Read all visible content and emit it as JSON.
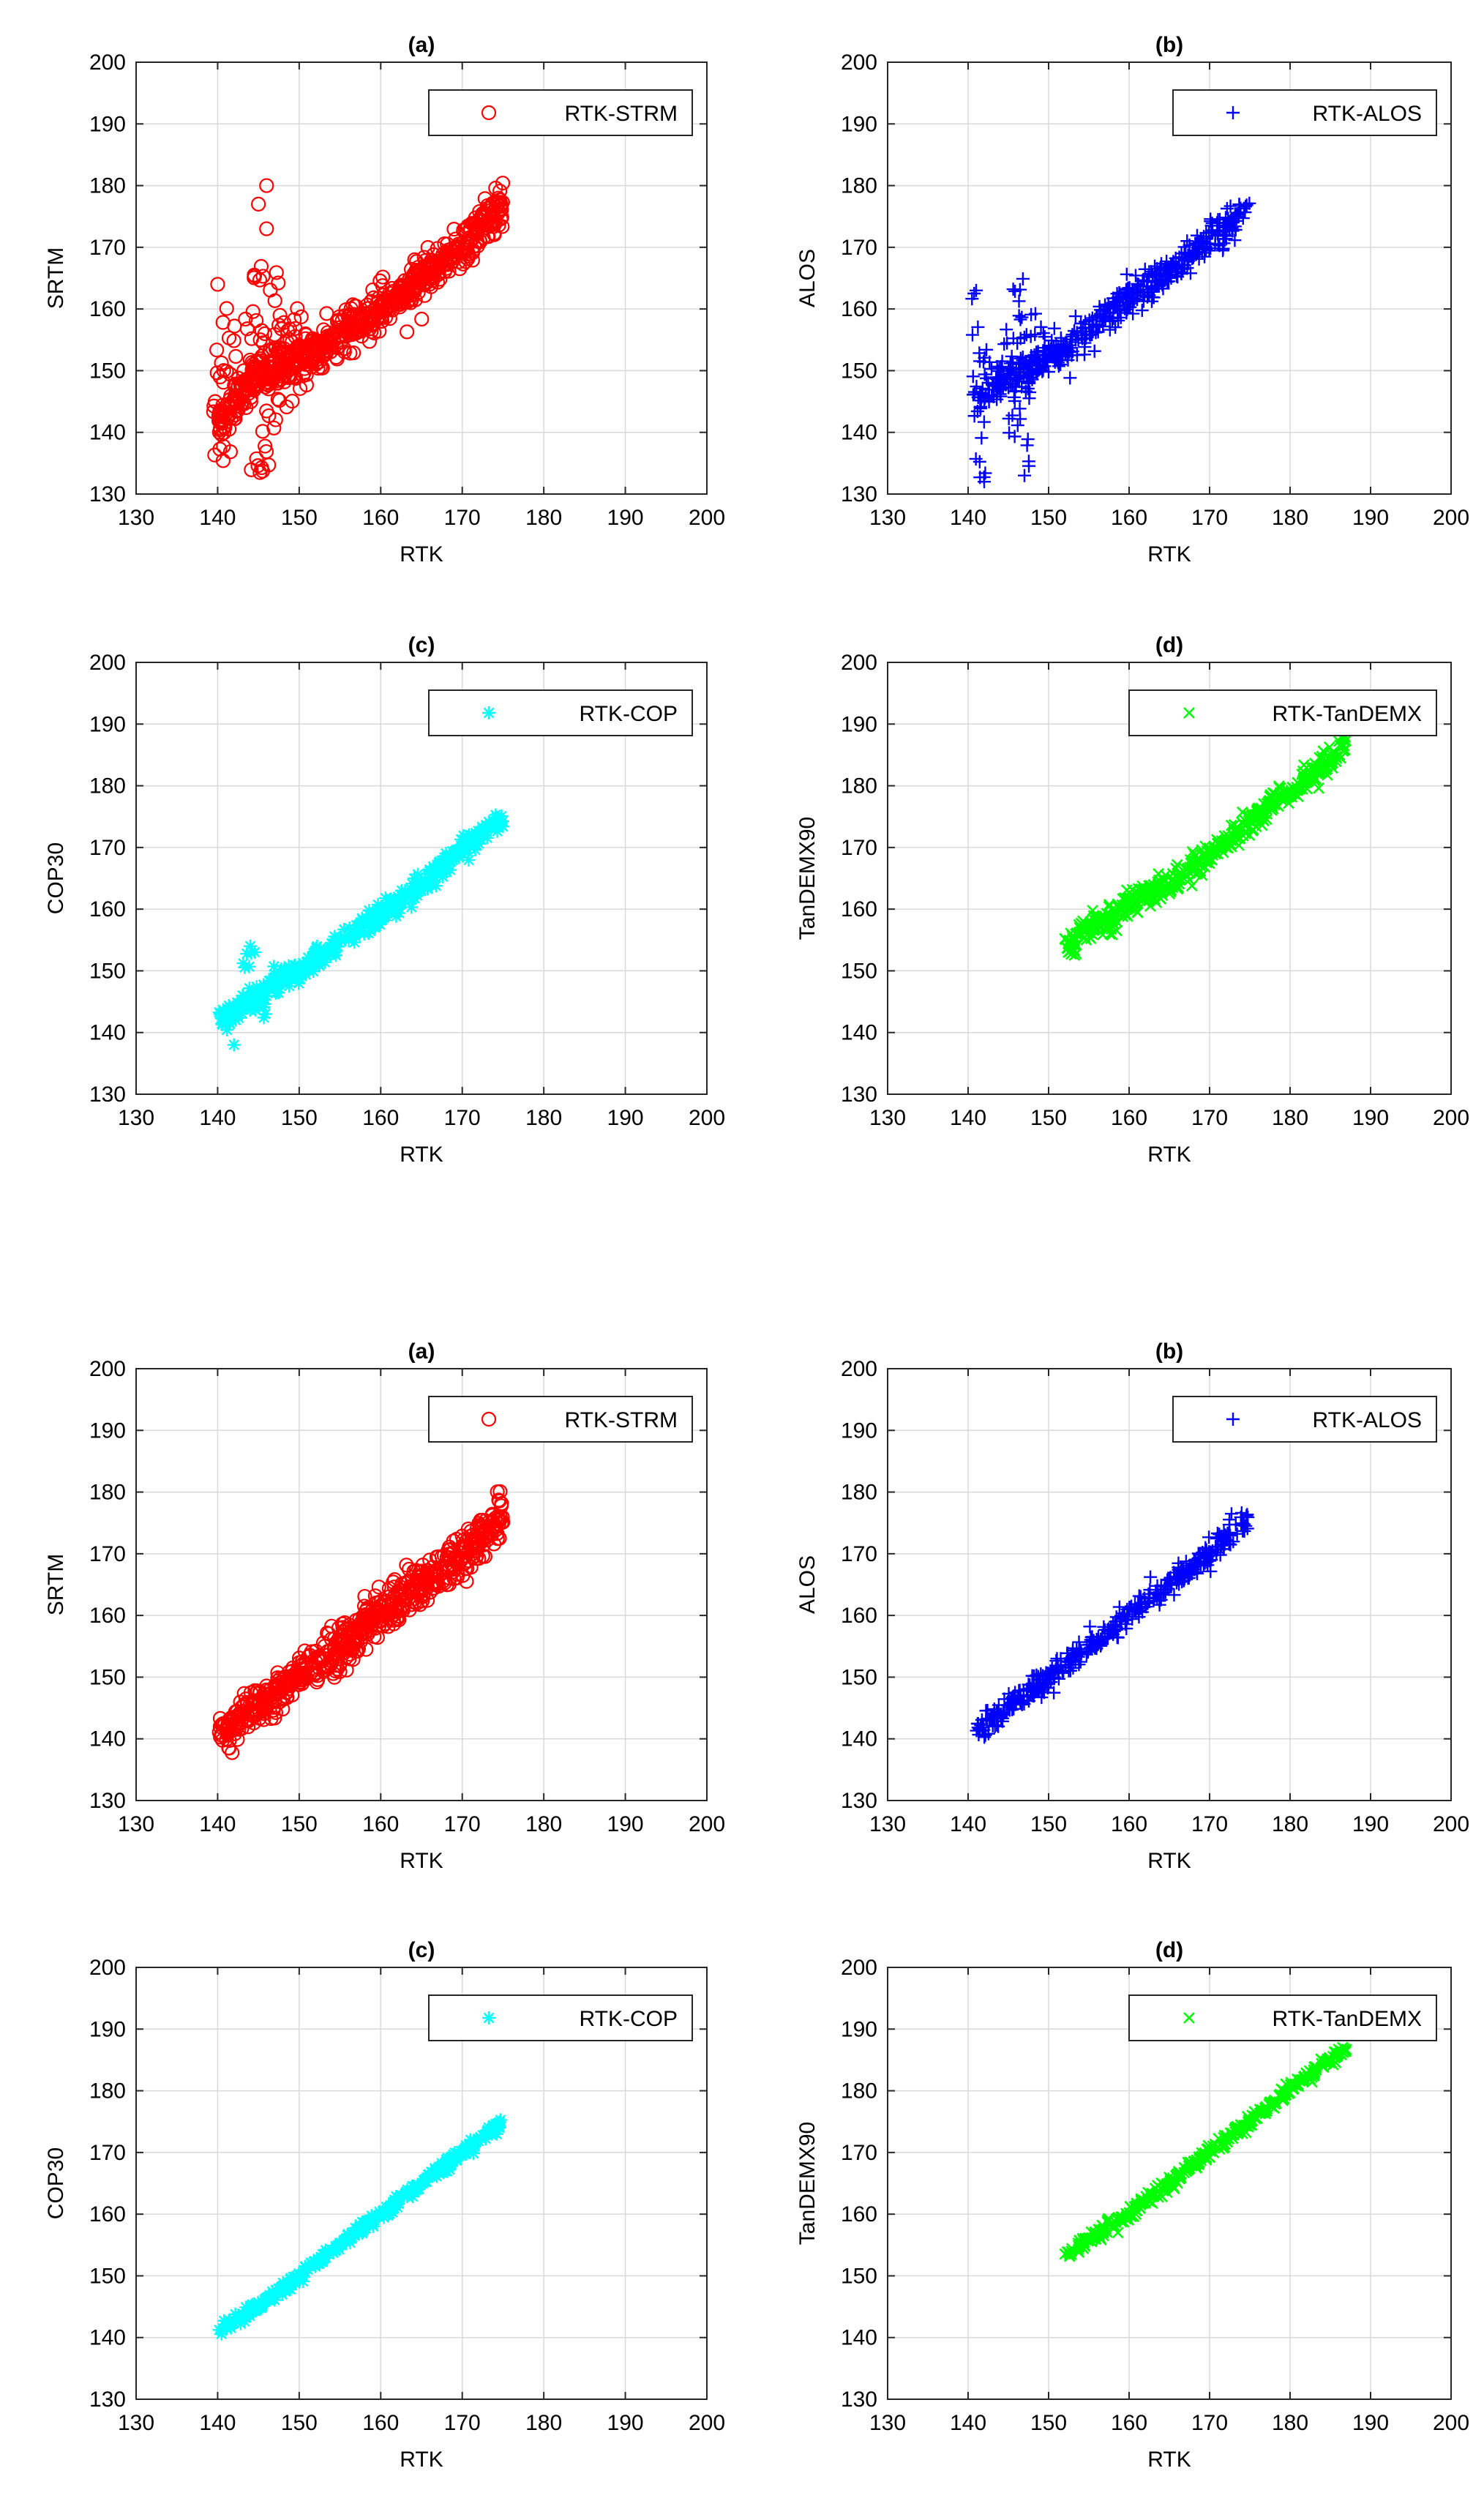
{
  "chart_data": [
    {
      "panel": "(a)",
      "type": "scatter",
      "title": "(a)",
      "xlabel": "RTK",
      "ylabel": "SRTM",
      "xlim": [
        130,
        200
      ],
      "ylim": [
        130,
        200
      ],
      "xticks": [
        130,
        140,
        150,
        160,
        170,
        180,
        190,
        200
      ],
      "yticks": [
        130,
        140,
        150,
        160,
        170,
        180,
        190,
        200
      ],
      "grid": true,
      "legend_position": "top-right",
      "series": [
        {
          "name": "RTK-STRM",
          "marker": "circle",
          "color": "#ff0000",
          "trend": [
            [
              140,
              141
            ],
            [
              145,
              150
            ],
            [
              150,
              152
            ],
            [
              155,
              156
            ],
            [
              160,
              160
            ],
            [
              165,
              165
            ],
            [
              170,
              170
            ],
            [
              175,
              177
            ]
          ],
          "spread": 3,
          "count": 700,
          "extras": [
            [
              140,
              135,
              160,
              12
            ],
            [
              141,
              134,
              162,
              10
            ],
            [
              142,
              136,
              158,
              10
            ],
            [
              144,
              133,
              160,
              10
            ],
            [
              145,
              131,
              168,
              14
            ],
            [
              146,
              132,
              166,
              14
            ],
            [
              147,
              138,
              166,
              12
            ],
            [
              148,
              142,
              160,
              10
            ],
            [
              149,
              145,
              158,
              8
            ],
            [
              150,
              147,
              162,
              8
            ]
          ],
          "outliers": [
            [
              145,
              177
            ],
            [
              146,
              180
            ],
            [
              146,
              173
            ],
            [
              140,
              164
            ]
          ]
        }
      ]
    },
    {
      "panel": "(b)",
      "type": "scatter",
      "title": "(b)",
      "xlabel": "RTK",
      "ylabel": "ALOS",
      "xlim": [
        130,
        200
      ],
      "ylim": [
        130,
        200
      ],
      "xticks": [
        130,
        140,
        150,
        160,
        170,
        180,
        190,
        200
      ],
      "yticks": [
        130,
        140,
        150,
        160,
        170,
        180,
        190,
        200
      ],
      "grid": true,
      "legend_position": "top-right",
      "series": [
        {
          "name": "RTK-ALOS",
          "marker": "plus",
          "color": "#0000ff",
          "trend": [
            [
              141,
              145
            ],
            [
              144,
              148
            ],
            [
              147,
              150
            ],
            [
              150,
              152
            ],
            [
              155,
              156
            ],
            [
              160,
              162
            ],
            [
              165,
              166
            ],
            [
              170,
              171
            ],
            [
              175,
              177
            ]
          ],
          "spread": 2.5,
          "count": 500,
          "extras": [
            [
              141,
              134,
              163,
              14
            ],
            [
              142,
              132,
              156,
              12
            ],
            [
              145,
              139,
              160,
              8
            ],
            [
              146,
              134,
              167,
              14
            ],
            [
              147,
              133,
              166,
              14
            ],
            [
              148,
              145,
              160,
              8
            ],
            [
              149,
              148,
              158,
              8
            ]
          ],
          "outliers": [
            [
              141,
              163
            ],
            [
              142,
              132
            ],
            [
              147,
              133
            ]
          ]
        }
      ]
    },
    {
      "panel": "(c)",
      "type": "scatter",
      "title": "(c)",
      "xlabel": "RTK",
      "ylabel": "COP30",
      "xlim": [
        130,
        200
      ],
      "ylim": [
        130,
        200
      ],
      "xticks": [
        130,
        140,
        150,
        160,
        170,
        180,
        190,
        200
      ],
      "yticks": [
        130,
        140,
        150,
        160,
        170,
        180,
        190,
        200
      ],
      "grid": true,
      "legend_position": "top-right",
      "series": [
        {
          "name": "RTK-COP",
          "marker": "asterisk",
          "color": "#00ffff",
          "trend": [
            [
              140,
              142
            ],
            [
              143,
              144
            ],
            [
              146,
              147
            ],
            [
              148,
              149
            ],
            [
              150,
              150
            ],
            [
              155,
              155
            ],
            [
              160,
              159
            ],
            [
              165,
              164
            ],
            [
              170,
              170
            ],
            [
              175,
              175
            ]
          ],
          "spread": 1.6,
          "count": 420,
          "extras": [
            [
              141,
              138,
              144,
              6
            ],
            [
              143,
              142,
              154,
              5
            ],
            [
              144,
              150,
              154,
              4
            ],
            [
              146,
              141,
              145,
              5
            ]
          ],
          "outliers": [
            [
              144,
              154
            ],
            [
              142,
              138
            ]
          ]
        }
      ]
    },
    {
      "panel": "(d)",
      "type": "scatter",
      "title": "(d)",
      "xlabel": "RTK",
      "ylabel": "TanDEMX90",
      "xlim": [
        130,
        200
      ],
      "ylim": [
        130,
        200
      ],
      "xticks": [
        130,
        140,
        150,
        160,
        170,
        180,
        190,
        200
      ],
      "yticks": [
        130,
        140,
        150,
        160,
        170,
        180,
        190,
        200
      ],
      "grid": true,
      "legend_position": "top-right",
      "series": [
        {
          "name": "RTK-TanDEMX",
          "marker": "x",
          "color": "#00ff00",
          "trend": [
            [
              152,
              154
            ],
            [
              155,
              157
            ],
            [
              158,
              159
            ],
            [
              160,
              161
            ],
            [
              165,
              164
            ],
            [
              170,
              169
            ],
            [
              175,
              174
            ],
            [
              180,
              179
            ],
            [
              185,
              184
            ],
            [
              187,
              187
            ]
          ],
          "spread": 1.8,
          "count": 520,
          "extras": [
            [
              153,
              152,
              156,
              4
            ],
            [
              158,
              153,
              157,
              3
            ]
          ],
          "outliers": []
        }
      ]
    },
    {
      "panel": "(a)",
      "type": "scatter",
      "title": "(a)",
      "xlabel": "RTK",
      "ylabel": "SRTM",
      "xlim": [
        130,
        200
      ],
      "ylim": [
        130,
        200
      ],
      "xticks": [
        130,
        140,
        150,
        160,
        170,
        180,
        190,
        200
      ],
      "yticks": [
        130,
        140,
        150,
        160,
        170,
        180,
        190,
        200
      ],
      "grid": true,
      "legend_position": "top-right",
      "series": [
        {
          "name": "RTK-STRM",
          "marker": "circle",
          "color": "#ff0000",
          "trend": [
            [
              140,
              141
            ],
            [
              145,
              145
            ],
            [
              150,
              150
            ],
            [
              155,
              155
            ],
            [
              160,
              160
            ],
            [
              165,
              165
            ],
            [
              170,
              170
            ],
            [
              175,
              176
            ]
          ],
          "spread": 3.2,
          "count": 650,
          "extras": [],
          "outliers": []
        }
      ]
    },
    {
      "panel": "(b)",
      "type": "scatter",
      "title": "(b)",
      "xlabel": "RTK",
      "ylabel": "ALOS",
      "xlim": [
        130,
        200
      ],
      "ylim": [
        130,
        200
      ],
      "xticks": [
        130,
        140,
        150,
        160,
        170,
        180,
        190,
        200
      ],
      "yticks": [
        130,
        140,
        150,
        160,
        170,
        180,
        190,
        200
      ],
      "grid": true,
      "legend_position": "top-right",
      "series": [
        {
          "name": "RTK-ALOS",
          "marker": "plus",
          "color": "#0000ff",
          "trend": [
            [
              141,
              141
            ],
            [
              145,
              145
            ],
            [
              150,
              150
            ],
            [
              155,
              155
            ],
            [
              160,
              160
            ],
            [
              165,
              165
            ],
            [
              170,
              170
            ],
            [
              175,
              176
            ]
          ],
          "spread": 1.8,
          "count": 450,
          "extras": [],
          "outliers": []
        }
      ]
    },
    {
      "panel": "(c)",
      "type": "scatter",
      "title": "(c)",
      "xlabel": "RTK",
      "ylabel": "COP30",
      "xlim": [
        130,
        200
      ],
      "ylim": [
        130,
        200
      ],
      "xticks": [
        130,
        140,
        150,
        160,
        170,
        180,
        190,
        200
      ],
      "yticks": [
        130,
        140,
        150,
        160,
        170,
        180,
        190,
        200
      ],
      "grid": true,
      "legend_position": "top-right",
      "series": [
        {
          "name": "RTK-COP",
          "marker": "asterisk",
          "color": "#00ffff",
          "trend": [
            [
              140,
              141
            ],
            [
              145,
              145
            ],
            [
              150,
              150
            ],
            [
              155,
              155
            ],
            [
              160,
              160
            ],
            [
              165,
              165
            ],
            [
              170,
              170
            ],
            [
              175,
              175
            ]
          ],
          "spread": 0.9,
          "count": 380,
          "extras": [],
          "outliers": []
        }
      ]
    },
    {
      "panel": "(d)",
      "type": "scatter",
      "title": "(d)",
      "xlabel": "RTK",
      "ylabel": "TanDEMX90",
      "xlim": [
        130,
        200
      ],
      "ylim": [
        130,
        200
      ],
      "xticks": [
        130,
        140,
        150,
        160,
        170,
        180,
        190,
        200
      ],
      "yticks": [
        130,
        140,
        150,
        160,
        170,
        180,
        190,
        200
      ],
      "grid": true,
      "legend_position": "top-right",
      "series": [
        {
          "name": "RTK-TanDEMX",
          "marker": "x",
          "color": "#00ff00",
          "trend": [
            [
              152,
              153
            ],
            [
              155,
              156
            ],
            [
              160,
              160
            ],
            [
              165,
              165
            ],
            [
              170,
              170
            ],
            [
              175,
              175
            ],
            [
              180,
              180
            ],
            [
              185,
              185
            ],
            [
              187,
              187
            ]
          ],
          "spread": 1.0,
          "count": 400,
          "extras": [],
          "outliers": []
        }
      ]
    }
  ]
}
